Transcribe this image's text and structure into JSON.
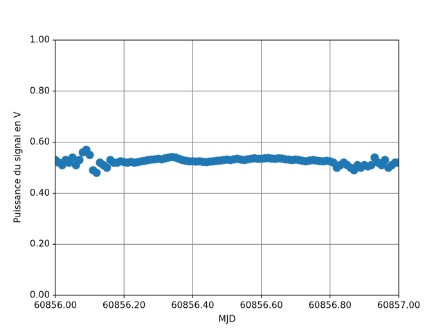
{
  "chart_data": {
    "type": "scatter",
    "xlabel": "MJD",
    "ylabel": "Puissance du signal en V",
    "color": "#1f77b4",
    "grid": true,
    "xlim": [
      60856,
      60857
    ],
    "ylim": [
      0,
      1
    ],
    "xticks": [
      {
        "value": 60856,
        "label": "60856.00"
      },
      {
        "value": 60856.2,
        "label": "60856.20"
      },
      {
        "value": 60856.4,
        "label": "60856.40"
      },
      {
        "value": 60856.6,
        "label": "60856.60"
      },
      {
        "value": 60856.8,
        "label": "60856.80"
      },
      {
        "value": 60857,
        "label": "60857.00"
      }
    ],
    "yticks": [
      {
        "value": 0,
        "label": "0.00"
      },
      {
        "value": 0.2,
        "label": "0.20"
      },
      {
        "value": 0.4,
        "label": "0.40"
      },
      {
        "value": 0.6,
        "label": "0.60"
      },
      {
        "value": 0.8,
        "label": "0.80"
      },
      {
        "value": 1,
        "label": "1.00"
      }
    ],
    "x": [
      60856,
      60856.01,
      60856.02,
      60856.03,
      60856.04,
      60856.05,
      60856.06,
      60856.07,
      60856.08,
      60856.09,
      60856.1,
      60856.11,
      60856.12,
      60856.13,
      60856.14,
      60856.15,
      60856.16,
      60856.17,
      60856.18,
      60856.19,
      60856.2,
      60856.21,
      60856.22,
      60856.23,
      60856.24,
      60856.25,
      60856.26,
      60856.27,
      60856.28,
      60856.29,
      60856.3,
      60856.31,
      60856.32,
      60856.33,
      60856.34,
      60856.35,
      60856.36,
      60856.37,
      60856.38,
      60856.39,
      60856.4,
      60856.41,
      60856.42,
      60856.43,
      60856.44,
      60856.45,
      60856.46,
      60856.47,
      60856.48,
      60856.49,
      60856.5,
      60856.51,
      60856.52,
      60856.53,
      60856.54,
      60856.55,
      60856.56,
      60856.57,
      60856.58,
      60856.59,
      60856.6,
      60856.61,
      60856.62,
      60856.63,
      60856.64,
      60856.65,
      60856.66,
      60856.67,
      60856.68,
      60856.69,
      60856.7,
      60856.71,
      60856.72,
      60856.73,
      60856.74,
      60856.75,
      60856.76,
      60856.77,
      60856.78,
      60856.79,
      60856.8,
      60856.81,
      60856.82,
      60856.83,
      60856.84,
      60856.85,
      60856.86,
      60856.87,
      60856.88,
      60856.89,
      60856.9,
      60856.91,
      60856.92,
      60856.93,
      60856.94,
      60856.95,
      60856.96,
      60856.97,
      60856.98,
      60856.99,
      60857
    ],
    "values": [
      0.53,
      0.52,
      0.51,
      0.53,
      0.52,
      0.54,
      0.51,
      0.53,
      0.56,
      0.57,
      0.55,
      0.49,
      0.48,
      0.52,
      0.51,
      0.5,
      0.53,
      0.52,
      0.52,
      0.525,
      0.522,
      0.52,
      0.523,
      0.52,
      0.522,
      0.525,
      0.527,
      0.53,
      0.532,
      0.533,
      0.535,
      0.533,
      0.537,
      0.54,
      0.542,
      0.54,
      0.535,
      0.53,
      0.527,
      0.525,
      0.525,
      0.524,
      0.525,
      0.523,
      0.522,
      0.524,
      0.525,
      0.527,
      0.528,
      0.53,
      0.532,
      0.53,
      0.533,
      0.535,
      0.532,
      0.53,
      0.533,
      0.535,
      0.537,
      0.535,
      0.535,
      0.537,
      0.538,
      0.536,
      0.535,
      0.537,
      0.536,
      0.533,
      0.532,
      0.53,
      0.532,
      0.53,
      0.527,
      0.525,
      0.528,
      0.53,
      0.528,
      0.526,
      0.525,
      0.527,
      0.525,
      0.52,
      0.5,
      0.51,
      0.52,
      0.51,
      0.5,
      0.49,
      0.51,
      0.5,
      0.51,
      0.505,
      0.51,
      0.54,
      0.52,
      0.51,
      0.53,
      0.5,
      0.51,
      0.52,
      0.52
    ]
  }
}
